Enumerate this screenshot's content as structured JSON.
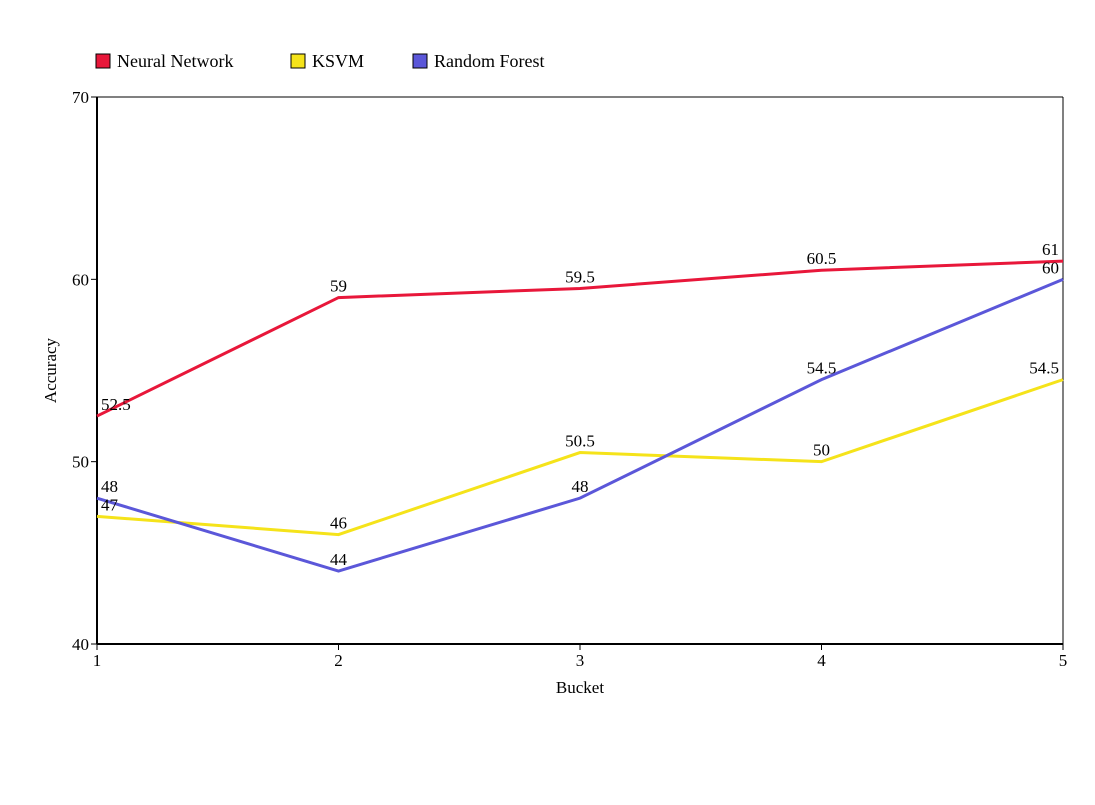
{
  "chart_data": {
    "type": "line",
    "title": "",
    "xlabel": "Bucket",
    "ylabel": "Accuracy",
    "x": [
      1,
      2,
      3,
      4,
      5
    ],
    "x_tick_labels": [
      "1",
      "2",
      "3",
      "4",
      "5"
    ],
    "ylim": [
      40,
      70
    ],
    "y_ticks": [
      40,
      50,
      60,
      70
    ],
    "grid": false,
    "legend_position": "top-left",
    "series": [
      {
        "name": "Neural Network",
        "color": "#e8173a",
        "values": [
          52.5,
          59,
          59.5,
          60.5,
          61
        ],
        "labels": [
          "52.5",
          "59",
          "59.5",
          "60.5",
          "61"
        ]
      },
      {
        "name": "KSVM",
        "color": "#f5e31a",
        "values": [
          47,
          46,
          50.5,
          50,
          54.5
        ],
        "labels": [
          "47",
          "46",
          "50.5",
          "50",
          "54.5"
        ]
      },
      {
        "name": "Random Forest",
        "color": "#5b57d9",
        "values": [
          48,
          44,
          48,
          54.5,
          60
        ],
        "labels": [
          "48",
          "44",
          "48",
          "54.5",
          "60"
        ]
      }
    ]
  }
}
